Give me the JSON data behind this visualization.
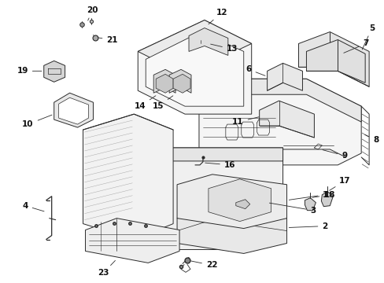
{
  "bg_color": "#ffffff",
  "line_color": "#2a2a2a",
  "label_color": "#111111",
  "fig_width": 4.89,
  "fig_height": 3.6,
  "dpi": 100,
  "lw": 0.7,
  "label_fs": 7.5
}
